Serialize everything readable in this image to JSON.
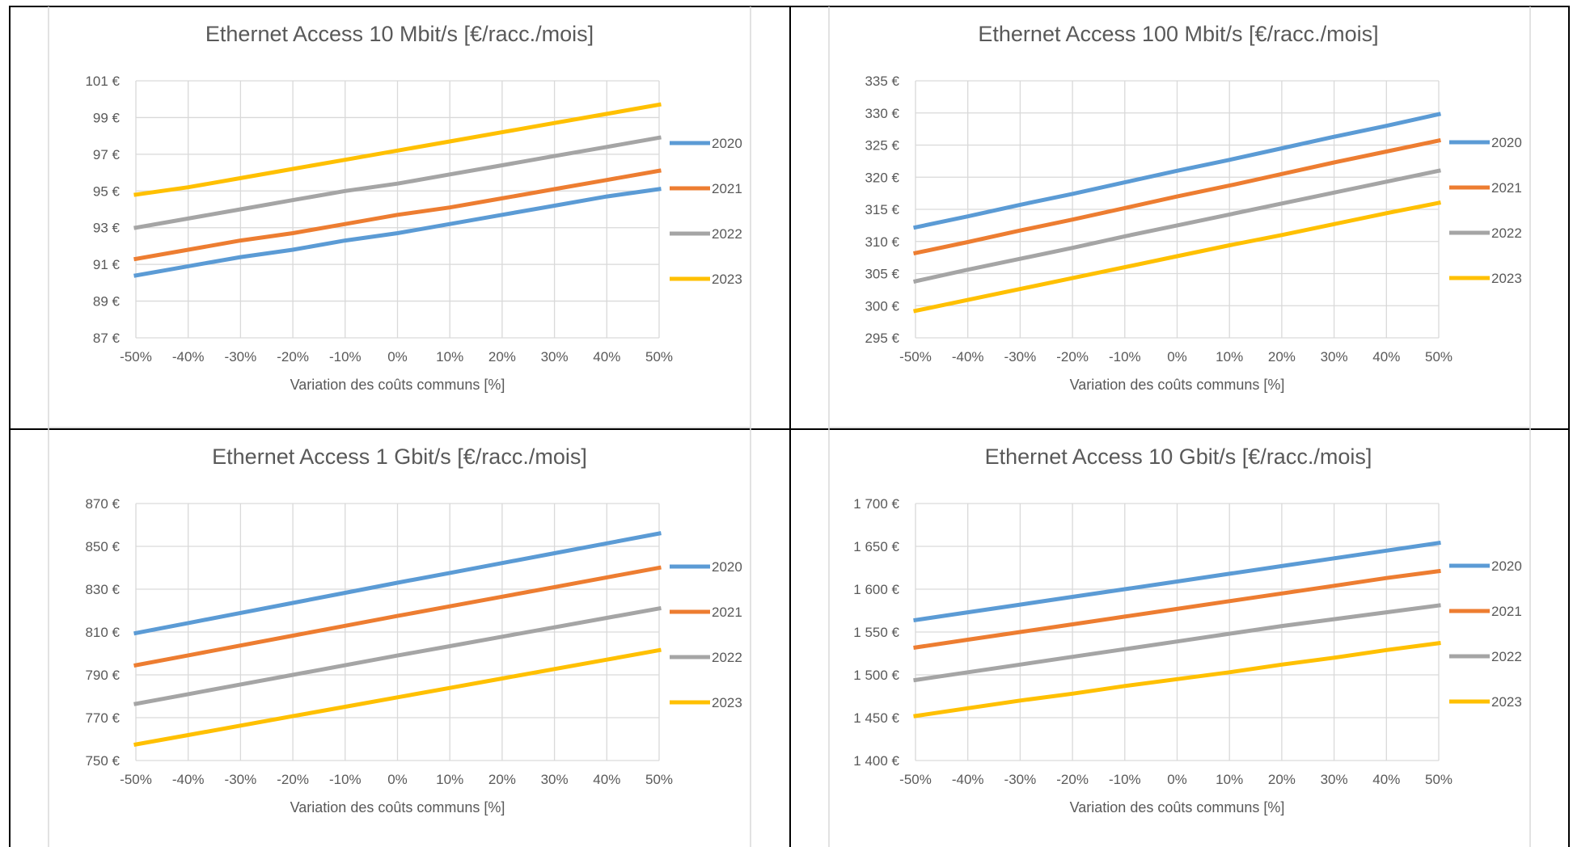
{
  "colors": {
    "2020": "#5B9BD5",
    "2021": "#ED7D31",
    "2022": "#A5A5A5",
    "2023": "#FFC000",
    "grid": "#D9D9D9",
    "text": "#595959",
    "border": "#000000"
  },
  "chart_data": [
    {
      "type": "line",
      "title": "Ethernet Access 10 Mbit/s [€/racc./mois]",
      "xlabel": "Variation des coûts communs [%]",
      "ylabel": "",
      "categories": [
        "-50%",
        "-40%",
        "-30%",
        "-20%",
        "-10%",
        "0%",
        "10%",
        "20%",
        "30%",
        "40%",
        "50%"
      ],
      "yticks": [
        "101 €",
        "99 €",
        "97 €",
        "95 €",
        "93 €",
        "91 €",
        "89 €",
        "87 €"
      ],
      "ylim": [
        87,
        101
      ],
      "legend_position": "right",
      "series": [
        {
          "name": "2020",
          "values": [
            90.4,
            90.9,
            91.4,
            91.8,
            92.3,
            92.7,
            93.2,
            93.7,
            94.2,
            94.7,
            95.1
          ]
        },
        {
          "name": "2021",
          "values": [
            91.3,
            91.8,
            92.3,
            92.7,
            93.2,
            93.7,
            94.1,
            94.6,
            95.1,
            95.6,
            96.1
          ]
        },
        {
          "name": "2022",
          "values": [
            93.0,
            93.5,
            94.0,
            94.5,
            95.0,
            95.4,
            95.9,
            96.4,
            96.9,
            97.4,
            97.9
          ]
        },
        {
          "name": "2023",
          "values": [
            94.8,
            95.2,
            95.7,
            96.2,
            96.7,
            97.2,
            97.7,
            98.2,
            98.7,
            99.2,
            99.7
          ]
        }
      ]
    },
    {
      "type": "line",
      "title": "Ethernet Access 100 Mbit/s [€/racc./mois]",
      "xlabel": "Variation des coûts communs [%]",
      "ylabel": "",
      "categories": [
        "-50%",
        "-40%",
        "-30%",
        "-20%",
        "-10%",
        "0%",
        "10%",
        "20%",
        "30%",
        "40%",
        "50%"
      ],
      "yticks": [
        "335 €",
        "330 €",
        "325 €",
        "320 €",
        "315 €",
        "310 €",
        "305 €",
        "300 €",
        "295 €"
      ],
      "ylim": [
        295,
        335
      ],
      "legend_position": "right",
      "series": [
        {
          "name": "2020",
          "values": [
            312.2,
            313.9,
            315.7,
            317.4,
            319.2,
            321.0,
            322.7,
            324.5,
            326.3,
            328.0,
            329.8
          ]
        },
        {
          "name": "2021",
          "values": [
            308.2,
            309.9,
            311.7,
            313.4,
            315.2,
            317.0,
            318.7,
            320.5,
            322.3,
            324.0,
            325.7
          ]
        },
        {
          "name": "2022",
          "values": [
            303.8,
            305.6,
            307.3,
            309.0,
            310.8,
            312.5,
            314.2,
            315.9,
            317.6,
            319.3,
            321.0
          ]
        },
        {
          "name": "2023",
          "values": [
            299.2,
            300.9,
            302.6,
            304.3,
            306.0,
            307.7,
            309.4,
            311.0,
            312.7,
            314.4,
            316.0
          ]
        }
      ]
    },
    {
      "type": "line",
      "title": "Ethernet Access 1 Gbit/s [€/racc./mois]",
      "xlabel": "Variation des coûts communs [%]",
      "ylabel": "",
      "categories": [
        "-50%",
        "-40%",
        "-30%",
        "-20%",
        "-10%",
        "0%",
        "10%",
        "20%",
        "30%",
        "40%",
        "50%"
      ],
      "yticks": [
        "870 €",
        "850 €",
        "830 €",
        "810 €",
        "790 €",
        "770 €",
        "750 €"
      ],
      "ylim": [
        750,
        870
      ],
      "legend_position": "right",
      "series": [
        {
          "name": "2020",
          "values": [
            809.5,
            814.2,
            818.9,
            823.6,
            828.3,
            833.0,
            837.6,
            842.2,
            846.8,
            851.4,
            856.0
          ]
        },
        {
          "name": "2021",
          "values": [
            794.5,
            799.1,
            803.7,
            808.3,
            812.9,
            817.5,
            822.0,
            826.5,
            831.0,
            835.5,
            840.0
          ]
        },
        {
          "name": "2022",
          "values": [
            776.5,
            781.0,
            785.5,
            790.0,
            794.5,
            799.0,
            803.4,
            807.8,
            812.2,
            816.6,
            821.0
          ]
        },
        {
          "name": "2023",
          "values": [
            757.5,
            761.9,
            766.3,
            770.7,
            775.1,
            779.5,
            783.9,
            788.3,
            792.7,
            797.1,
            801.5
          ]
        }
      ]
    },
    {
      "type": "line",
      "title": "Ethernet Access 10 Gbit/s [€/racc./mois]",
      "xlabel": "Variation des coûts communs [%]",
      "ylabel": "",
      "categories": [
        "-50%",
        "-40%",
        "-30%",
        "-20%",
        "-10%",
        "0%",
        "10%",
        "20%",
        "30%",
        "40%",
        "50%"
      ],
      "yticks": [
        "1 700 €",
        "1 650 €",
        "1 600 €",
        "1 550 €",
        "1 500 €",
        "1 450 €",
        "1 400 €"
      ],
      "ylim": [
        1400,
        1700
      ],
      "legend_position": "right",
      "series": [
        {
          "name": "2020",
          "values": [
            1564,
            1573,
            1582,
            1591,
            1600,
            1609,
            1618,
            1627,
            1636,
            1645,
            1654
          ]
        },
        {
          "name": "2021",
          "values": [
            1532,
            1541,
            1550,
            1559,
            1568,
            1577,
            1586,
            1595,
            1604,
            1613,
            1621
          ]
        },
        {
          "name": "2022",
          "values": [
            1494,
            1503,
            1512,
            1521,
            1530,
            1539,
            1548,
            1557,
            1565,
            1573,
            1581
          ]
        },
        {
          "name": "2023",
          "values": [
            1452,
            1461,
            1470,
            1478,
            1487,
            1495,
            1503,
            1512,
            1520,
            1529,
            1537
          ]
        }
      ]
    }
  ]
}
